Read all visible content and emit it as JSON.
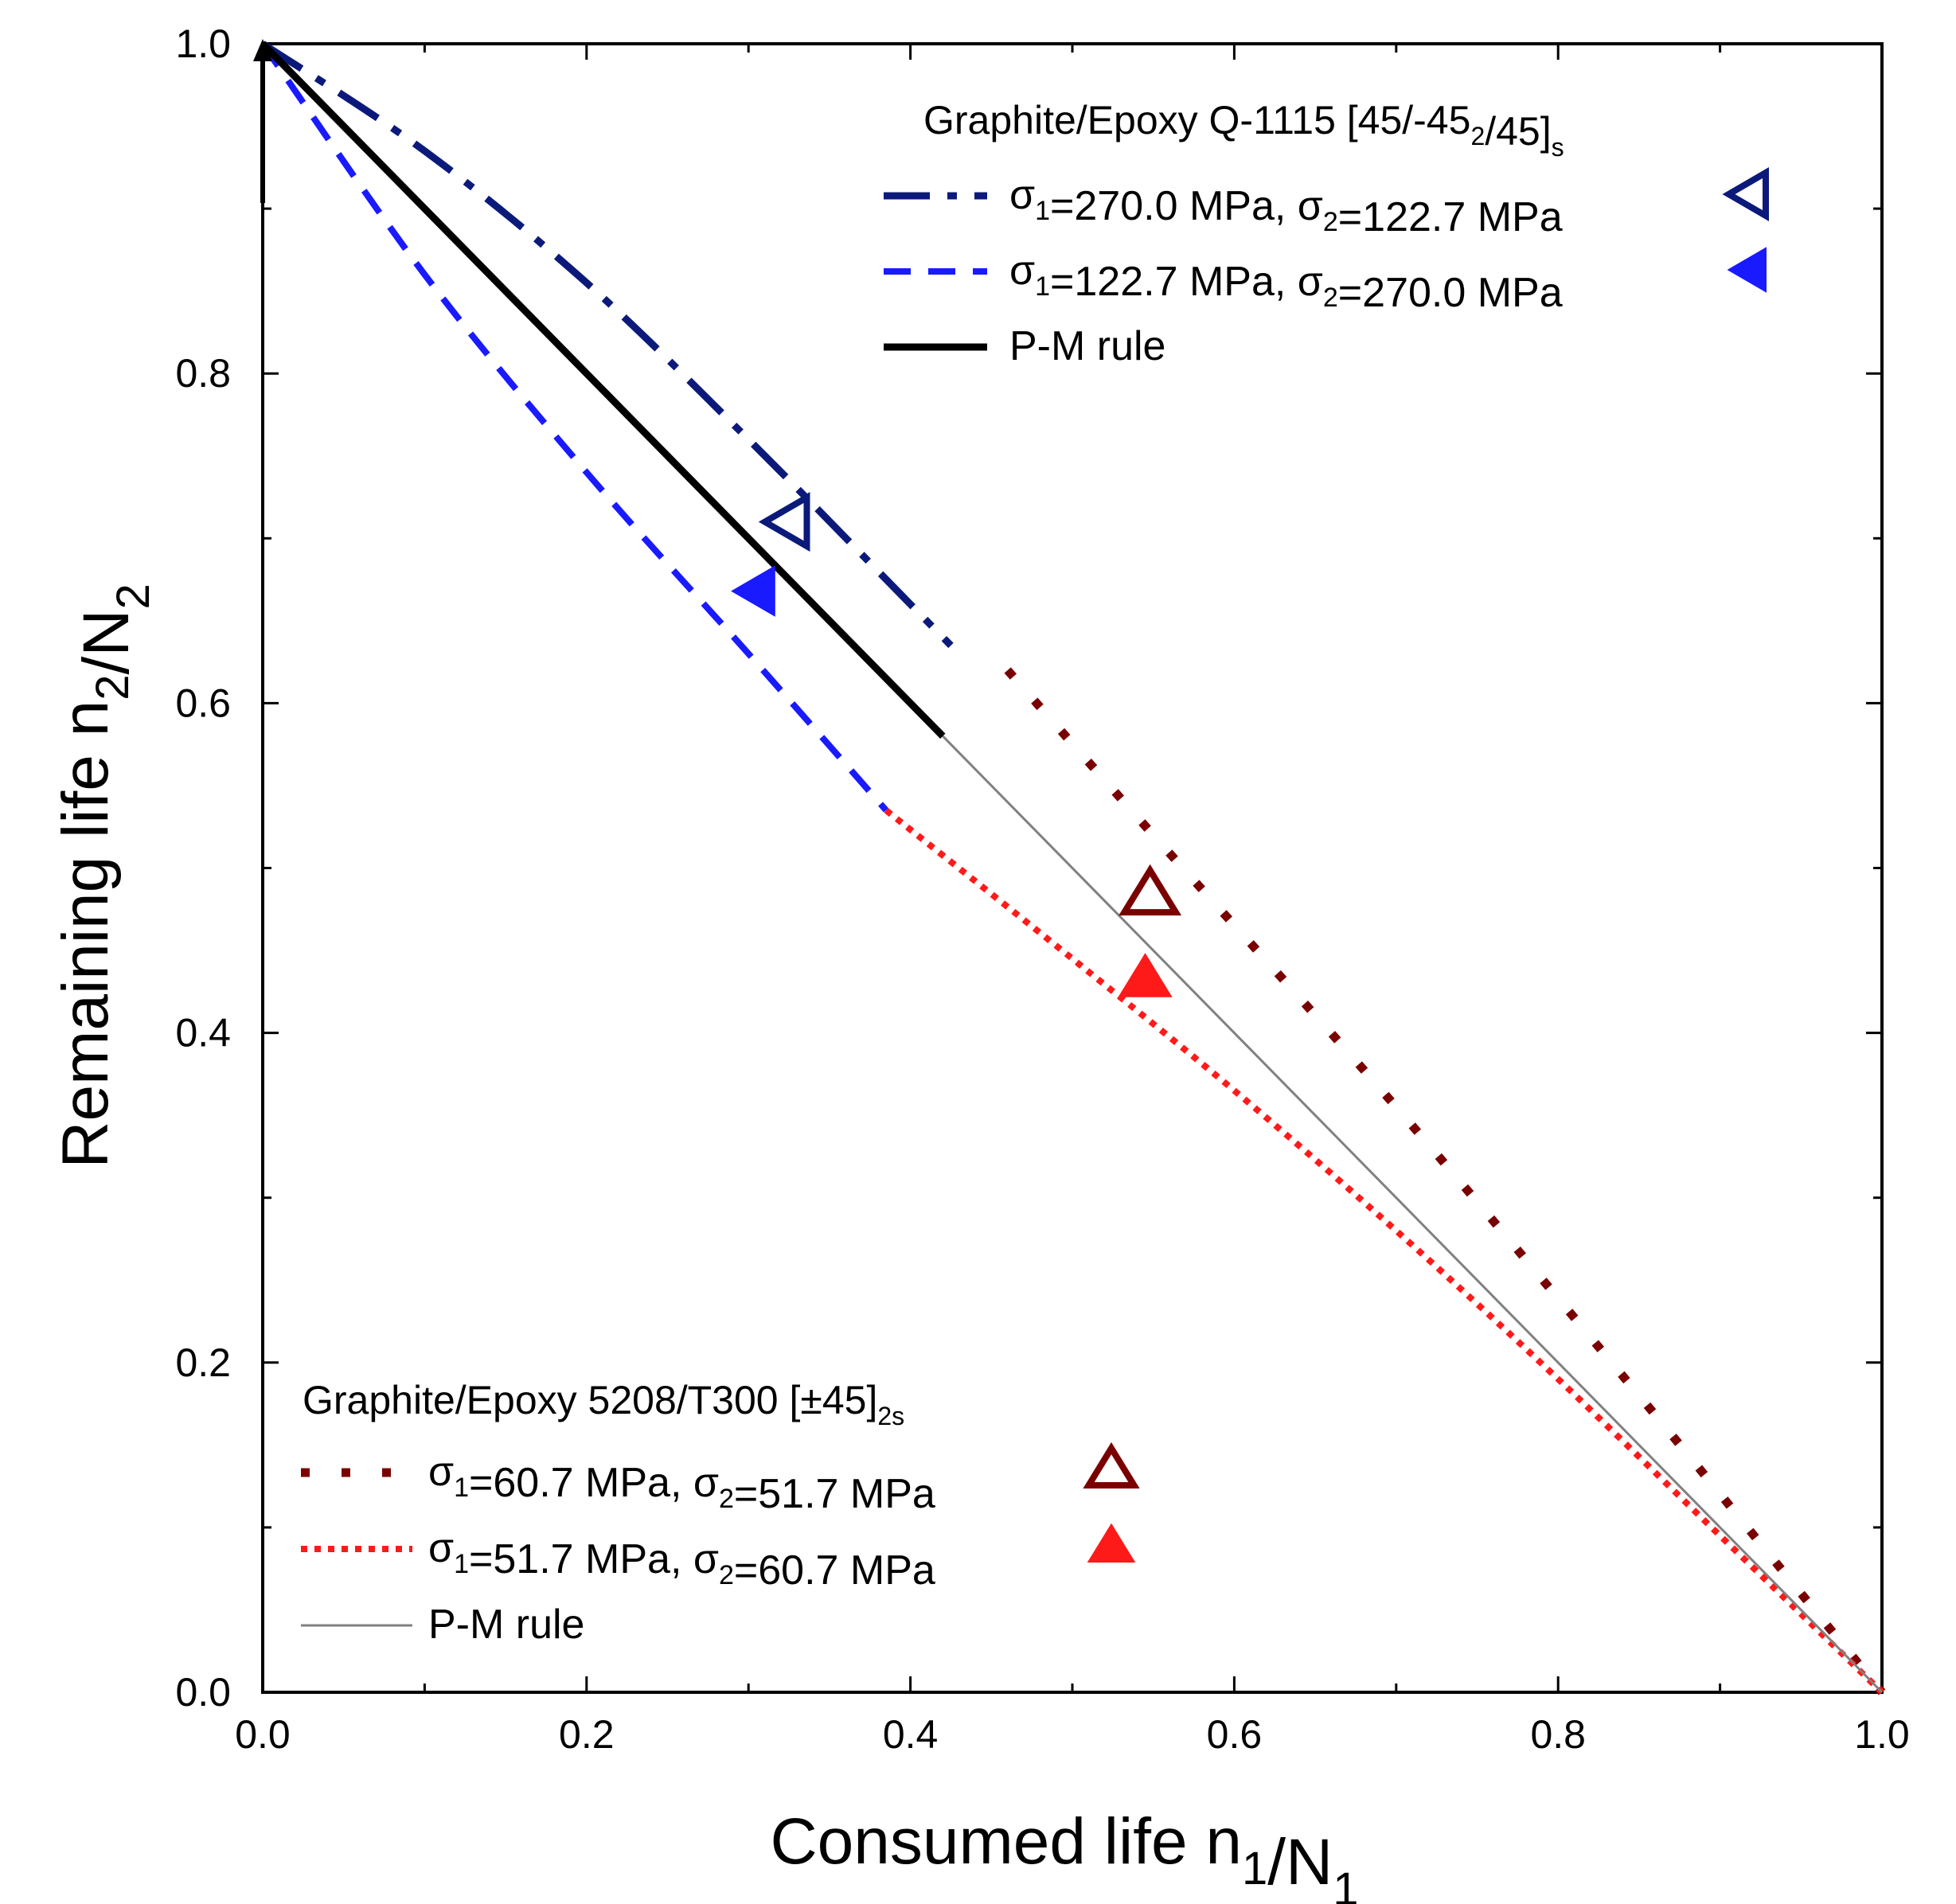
{
  "chart_data": {
    "type": "line",
    "x_axis": {
      "label_parts": [
        {
          "text": "Consumed life n",
          "sub": false
        },
        {
          "text": "1",
          "sub": true
        },
        {
          "text": "/N",
          "sub": false
        },
        {
          "text": "1",
          "sub": true
        }
      ],
      "range": [
        0.0,
        1.0
      ],
      "major_ticks": [
        0.0,
        0.2,
        0.4,
        0.6,
        0.8,
        1.0
      ],
      "minor_ticks": [
        0.1,
        0.3,
        0.5,
        0.7,
        0.9
      ],
      "tick_labels": [
        "0.0",
        "0.2",
        "0.4",
        "0.6",
        "0.8",
        "1.0"
      ]
    },
    "y_axis": {
      "label_parts": [
        {
          "text": "Remaining life n",
          "sub": false
        },
        {
          "text": "2",
          "sub": true
        },
        {
          "text": "/N",
          "sub": false
        },
        {
          "text": "2",
          "sub": true
        }
      ],
      "range": [
        0.0,
        1.0
      ],
      "major_ticks": [
        0.0,
        0.2,
        0.4,
        0.6,
        0.8,
        1.0
      ],
      "minor_ticks": [
        0.1,
        0.3,
        0.5,
        0.7,
        0.9
      ],
      "tick_labels": [
        "0.0",
        "0.2",
        "0.4",
        "0.6",
        "0.8",
        "1.0"
      ]
    },
    "grid": false,
    "series": [
      {
        "id": "q1115-270-122",
        "group": "Q-1115",
        "style": "dash-dot",
        "color": "#0b1a7a",
        "x": [
          0.0,
          0.1,
          0.2,
          0.3,
          0.4,
          0.425
        ],
        "y": [
          1.0,
          0.935,
          0.855,
          0.76,
          0.66,
          0.635
        ]
      },
      {
        "id": "q1115-122-270",
        "group": "Q-1115",
        "style": "dash",
        "color": "#1a1aff",
        "x": [
          0.0,
          0.1,
          0.2,
          0.3,
          0.385
        ],
        "y": [
          1.0,
          0.86,
          0.74,
          0.63,
          0.535
        ]
      },
      {
        "id": "q1115-pm",
        "group": "Q-1115",
        "style": "solid-thick",
        "color": "#000000",
        "x": [
          0.0,
          0.42
        ],
        "y": [
          1.0,
          0.58
        ]
      },
      {
        "id": "t300-60-51",
        "group": "5208/T300",
        "style": "sparse-dot",
        "color": "#7a0000",
        "x": [
          0.46,
          0.55,
          0.7,
          0.85,
          0.95,
          1.0
        ],
        "y": [
          0.62,
          0.52,
          0.355,
          0.18,
          0.06,
          0.0
        ]
      },
      {
        "id": "t300-51-60",
        "group": "5208/T300",
        "style": "dense-dot",
        "color": "#ff1a1a",
        "x": [
          0.385,
          0.5,
          0.6,
          0.7,
          0.8,
          0.9,
          1.0
        ],
        "y": [
          0.535,
          0.445,
          0.365,
          0.28,
          0.19,
          0.095,
          0.0
        ]
      },
      {
        "id": "t300-pm",
        "group": "5208/T300",
        "style": "solid-thin",
        "color": "#808080",
        "x": [
          0.42,
          1.0
        ],
        "y": [
          0.58,
          0.0
        ]
      }
    ],
    "markers": [
      {
        "id": "m-q-open",
        "x": 0.326,
        "y": 0.71,
        "shape": "triangle-left",
        "filled": false,
        "color": "#0b1a7a"
      },
      {
        "id": "m-q-filled",
        "x": 0.306,
        "y": 0.668,
        "shape": "triangle-left",
        "filled": true,
        "color": "#1a1aff"
      },
      {
        "id": "m-t-open",
        "x": 0.548,
        "y": 0.483,
        "shape": "triangle-up",
        "filled": false,
        "color": "#7a0000"
      },
      {
        "id": "m-t-filled",
        "x": 0.545,
        "y": 0.432,
        "shape": "triangle-up",
        "filled": true,
        "color": "#ff1a1a"
      }
    ],
    "legends": [
      {
        "id": "legend-q1115",
        "placement": "top-right",
        "title_parts": [
          {
            "text": "Graphite/Epoxy Q-1115 [45/-45",
            "sub": false
          },
          {
            "text": "2",
            "sub": true
          },
          {
            "text": "/45]",
            "sub": false
          },
          {
            "text": "s",
            "sub": true
          }
        ],
        "entries": [
          {
            "series": "q1115-270-122",
            "marker": "m-q-open",
            "label_parts": [
              {
                "text": "σ",
                "sub": false
              },
              {
                "text": "1",
                "sub": true
              },
              {
                "text": "=270.0 MPa, σ",
                "sub": false
              },
              {
                "text": "2",
                "sub": true
              },
              {
                "text": "=122.7 MPa",
                "sub": false
              }
            ]
          },
          {
            "series": "q1115-122-270",
            "marker": "m-q-filled",
            "label_parts": [
              {
                "text": "σ",
                "sub": false
              },
              {
                "text": "1",
                "sub": true
              },
              {
                "text": "=122.7 MPa, σ",
                "sub": false
              },
              {
                "text": "2",
                "sub": true
              },
              {
                "text": "=270.0 MPa",
                "sub": false
              }
            ]
          },
          {
            "series": "q1115-pm",
            "marker": null,
            "label_parts": [
              {
                "text": "P-M rule",
                "sub": false
              }
            ]
          }
        ]
      },
      {
        "id": "legend-t300",
        "placement": "bottom-left",
        "title_parts": [
          {
            "text": "Graphite/Epoxy 5208/T300 [±45]",
            "sub": false
          },
          {
            "text": "2s",
            "sub": true
          }
        ],
        "entries": [
          {
            "series": "t300-60-51",
            "marker": "m-t-open",
            "label_parts": [
              {
                "text": "σ",
                "sub": false
              },
              {
                "text": "1",
                "sub": true
              },
              {
                "text": "=60.7 MPa, σ",
                "sub": false
              },
              {
                "text": "2",
                "sub": true
              },
              {
                "text": "=51.7 MPa",
                "sub": false
              }
            ]
          },
          {
            "series": "t300-51-60",
            "marker": "m-t-filled",
            "label_parts": [
              {
                "text": "σ",
                "sub": false
              },
              {
                "text": "1",
                "sub": true
              },
              {
                "text": "=51.7 MPa, σ",
                "sub": false
              },
              {
                "text": "2",
                "sub": true
              },
              {
                "text": "=60.7 MPa",
                "sub": false
              }
            ]
          },
          {
            "series": "t300-pm",
            "marker": null,
            "label_parts": [
              {
                "text": "P-M rule",
                "sub": false
              }
            ]
          }
        ]
      }
    ]
  }
}
